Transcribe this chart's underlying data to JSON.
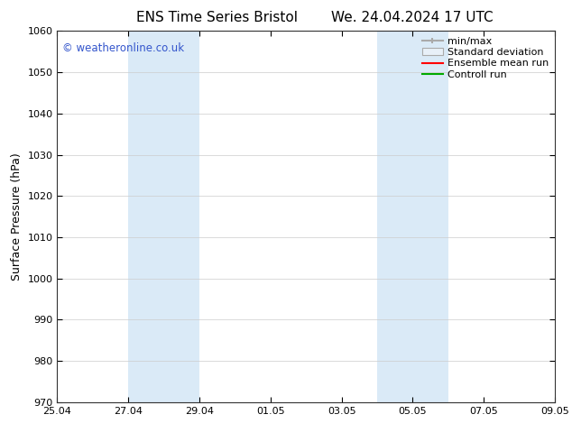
{
  "title_left": "ENS Time Series Bristol",
  "title_right": "We. 24.04.2024 17 UTC",
  "ylabel": "Surface Pressure (hPa)",
  "ylim": [
    970,
    1060
  ],
  "yticks": [
    970,
    980,
    990,
    1000,
    1010,
    1020,
    1030,
    1040,
    1050,
    1060
  ],
  "xtick_labels": [
    "25.04",
    "27.04",
    "29.04",
    "01.05",
    "03.05",
    "05.05",
    "07.05",
    "09.05"
  ],
  "xtick_positions": [
    0,
    2,
    4,
    6,
    8,
    10,
    12,
    14
  ],
  "xlim": [
    0,
    14
  ],
  "shade_regions": [
    {
      "start": 2,
      "end": 4,
      "color": "#daeaf7"
    },
    {
      "start": 9,
      "end": 11,
      "color": "#daeaf7"
    }
  ],
  "background_color": "#ffffff",
  "grid_color": "#cccccc",
  "watermark_text": "© weatheronline.co.uk",
  "watermark_color": "#3355cc",
  "title_fontsize": 11,
  "axis_label_fontsize": 9,
  "tick_fontsize": 8,
  "legend_fontsize": 8,
  "legend_line_color_minmax": "#aaaaaa",
  "legend_line_color_std": "#cccccc",
  "legend_line_color_ens": "#ff0000",
  "legend_line_color_ctrl": "#00aa00"
}
